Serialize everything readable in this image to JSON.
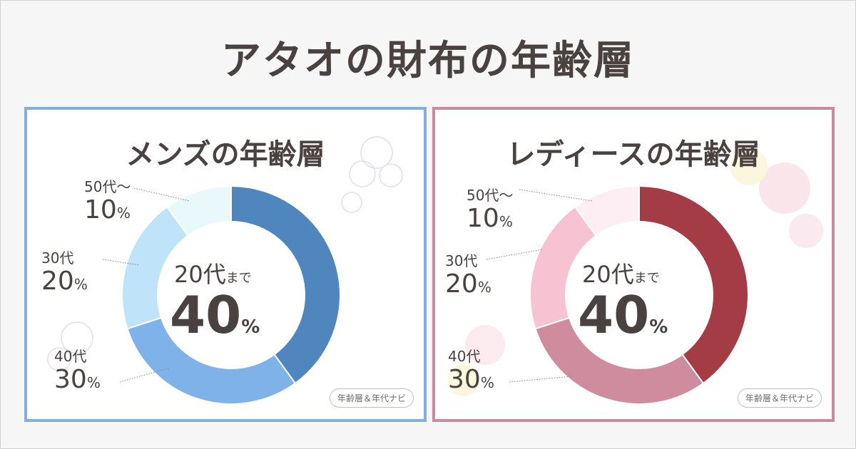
{
  "title": "アタオの財布の年齢層",
  "badge": "年齢層＆年代ナビ",
  "chart_data": [
    {
      "type": "pie",
      "title": "メンズの年齢層",
      "categories": [
        "20代まで",
        "40代",
        "30代",
        "50代～"
      ],
      "values": [
        40,
        30,
        20,
        10
      ],
      "colors": [
        "#4f86bd",
        "#7fb2e8",
        "#bfe3f8",
        "#e8f8fb"
      ]
    },
    {
      "type": "pie",
      "title": "レディースの年齢層",
      "categories": [
        "20代まで",
        "40代",
        "30代",
        "50代～"
      ],
      "values": [
        40,
        30,
        20,
        10
      ],
      "colors": [
        "#a33c44",
        "#cf8c9e",
        "#f7c2d2",
        "#fdeef4"
      ]
    }
  ],
  "men": {
    "title": "メンズの年齢層",
    "center_age": "20代",
    "center_suffix": "まで",
    "center_value": "40",
    "unit": "%",
    "labels": [
      {
        "age": "50代～",
        "value": "10"
      },
      {
        "age": "30代",
        "value": "20"
      },
      {
        "age": "40代",
        "value": "30"
      }
    ]
  },
  "women": {
    "title": "レディースの年齢層",
    "center_age": "20代",
    "center_suffix": "まで",
    "center_value": "40",
    "unit": "%",
    "labels": [
      {
        "age": "50代～",
        "value": "10"
      },
      {
        "age": "30代",
        "value": "20"
      },
      {
        "age": "40代",
        "value": "30"
      }
    ]
  }
}
